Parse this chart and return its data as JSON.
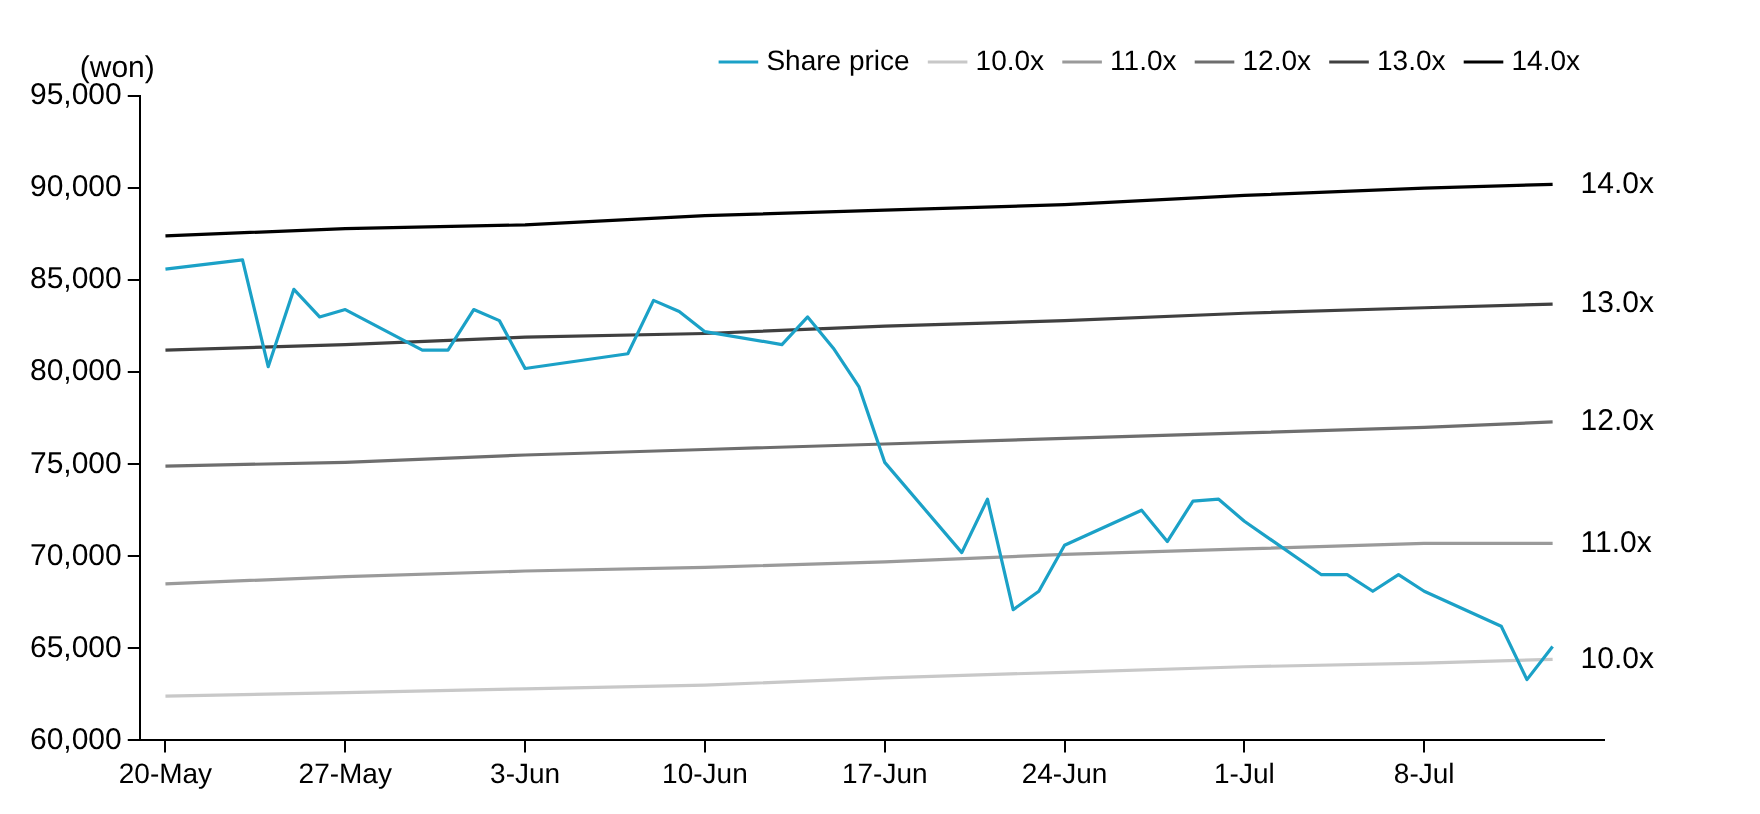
{
  "chart_data": {
    "type": "line",
    "ylabel": "(won)",
    "legend": "top",
    "xlim": [
      "--05-19",
      "--07-15"
    ],
    "xticks": [
      {
        "value": "--05-20",
        "label": "20-May"
      },
      {
        "value": "--05-27",
        "label": "27-May"
      },
      {
        "value": "--06-03",
        "label": "3-Jun"
      },
      {
        "value": "--06-10",
        "label": "10-Jun"
      },
      {
        "value": "--06-17",
        "label": "17-Jun"
      },
      {
        "value": "--06-24",
        "label": "24-Jun"
      },
      {
        "value": "--07-01",
        "label": "1-Jul"
      },
      {
        "value": "--07-08",
        "label": "8-Jul"
      }
    ],
    "ylim": [
      60000,
      95000
    ],
    "yticks": [
      {
        "value": 60000,
        "label": "60,000"
      },
      {
        "value": 65000,
        "label": "65,000"
      },
      {
        "value": 70000,
        "label": "70,000"
      },
      {
        "value": 75000,
        "label": "75,000"
      },
      {
        "value": 80000,
        "label": "80,000"
      },
      {
        "value": 85000,
        "label": "85,000"
      },
      {
        "value": 90000,
        "label": "90,000"
      },
      {
        "value": 95000,
        "label": "95,000"
      }
    ],
    "series": [
      {
        "name": "Share price",
        "color": "#1ba1c7",
        "x": [
          "--05-20",
          "--05-23",
          "--05-24",
          "--05-25",
          "--05-26",
          "--05-27",
          "--05-30",
          "--05-31",
          "--06-01",
          "--06-02",
          "--06-03",
          "--06-07",
          "--06-08",
          "--06-09",
          "--06-10",
          "--06-13",
          "--06-14",
          "--06-15",
          "--06-16",
          "--06-17",
          "--06-20",
          "--06-21",
          "--06-22",
          "--06-23",
          "--06-24",
          "--06-27",
          "--06-28",
          "--06-29",
          "--06-30",
          "--07-01",
          "--07-04",
          "--07-05",
          "--07-06",
          "--07-07",
          "--07-08",
          "--07-11",
          "--07-12",
          "--07-13"
        ],
        "values": [
          85600,
          86100,
          80300,
          84500,
          83000,
          83400,
          81200,
          81200,
          83400,
          82800,
          80200,
          81000,
          83900,
          83300,
          82200,
          81500,
          83000,
          81300,
          79200,
          75100,
          70200,
          73100,
          67100,
          68100,
          70600,
          72500,
          70800,
          73000,
          73100,
          71900,
          69000,
          69000,
          68100,
          69000,
          68100,
          66200,
          63300,
          65100
        ]
      },
      {
        "name": "10.0x",
        "color": "#c8c8c8",
        "x": [
          "--05-20",
          "--05-27",
          "--06-03",
          "--06-10",
          "--06-17",
          "--06-24",
          "--07-01",
          "--07-08",
          "--07-13"
        ],
        "values": [
          62400,
          62600,
          62800,
          63000,
          63400,
          63700,
          64000,
          64200,
          64400
        ]
      },
      {
        "name": "11.0x",
        "color": "#9a9a9a",
        "x": [
          "--05-20",
          "--05-27",
          "--06-03",
          "--06-10",
          "--06-17",
          "--06-24",
          "--07-01",
          "--07-08",
          "--07-13"
        ],
        "values": [
          68500,
          68900,
          69200,
          69400,
          69700,
          70100,
          70400,
          70700,
          70700
        ]
      },
      {
        "name": "12.0x",
        "color": "#6e6e6e",
        "x": [
          "--05-20",
          "--05-27",
          "--06-03",
          "--06-10",
          "--06-17",
          "--06-24",
          "--07-01",
          "--07-08",
          "--07-13"
        ],
        "values": [
          74900,
          75100,
          75500,
          75800,
          76100,
          76400,
          76700,
          77000,
          77300
        ]
      },
      {
        "name": "13.0x",
        "color": "#404040",
        "x": [
          "--05-20",
          "--05-27",
          "--06-03",
          "--06-10",
          "--06-17",
          "--06-24",
          "--07-01",
          "--07-08",
          "--07-13"
        ],
        "values": [
          81200,
          81500,
          81900,
          82100,
          82500,
          82800,
          83200,
          83500,
          83700
        ]
      },
      {
        "name": "14.0x",
        "color": "#000000",
        "x": [
          "--05-20",
          "--05-27",
          "--06-03",
          "--06-10",
          "--06-17",
          "--06-24",
          "--07-01",
          "--07-08",
          "--07-13"
        ],
        "values": [
          87400,
          87800,
          88000,
          88500,
          88800,
          89100,
          89600,
          90000,
          90200
        ]
      }
    ],
    "annotations": [
      {
        "text": "14.0x",
        "x": "--07-13",
        "y": 90200
      },
      {
        "text": "13.0x",
        "x": "--07-13",
        "y": 83700
      },
      {
        "text": "12.0x",
        "x": "--07-13",
        "y": 77300
      },
      {
        "text": "11.0x",
        "x": "--07-13",
        "y": 70700
      },
      {
        "text": "10.0x",
        "x": "--07-13",
        "y": 64400
      }
    ]
  }
}
